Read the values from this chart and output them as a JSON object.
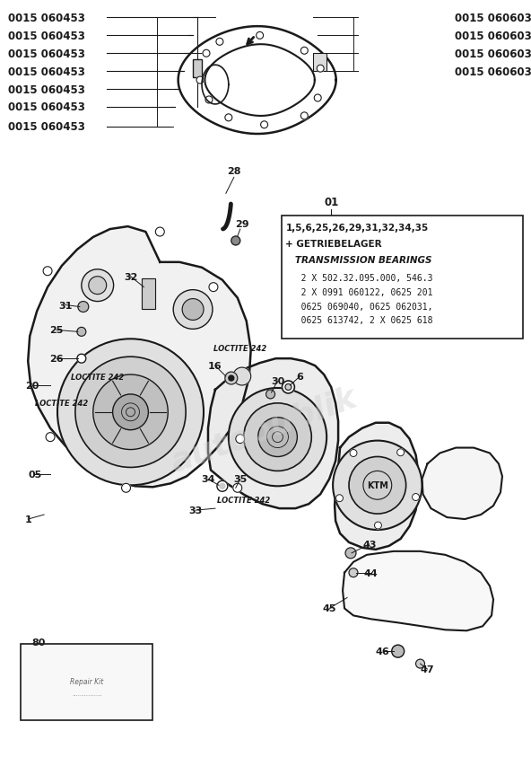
{
  "bg_color": "#ffffff",
  "line_color": "#1a1a1a",
  "fig_width": 5.92,
  "fig_height": 8.54,
  "left_labels": [
    "0015 060453",
    "0015 060453",
    "0015 060453",
    "0015 060453",
    "0015 060453",
    "0015 060453",
    "0015 060453"
  ],
  "right_labels": [
    "0015 060603",
    "0015 060603",
    "0015 060603",
    "0015 060603"
  ],
  "note_title_line1": "1,5,6,25,26,29,31,32,34,35",
  "note_title_line2": "+ GETRIEBELAGER",
  "note_title_line3": "   TRANSMISSION BEARINGS",
  "note_data_line1": "   2 X 502.32.095.000, 546.3",
  "note_data_line2": "   2 X 0991 060122, 0625 201",
  "note_data_line3": "   0625 069040, 0625 062031,",
  "note_data_line4": "   0625 613742, 2 X 0625 618",
  "watermark": "autopublik"
}
